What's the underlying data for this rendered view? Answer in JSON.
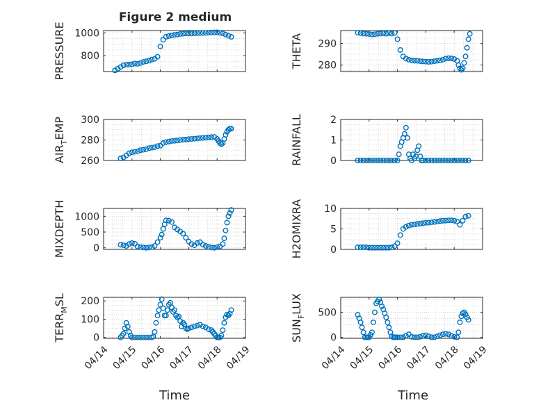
{
  "figure": {
    "title": "Figure 2 medium",
    "xlabel": "Time",
    "xtick_labels": [
      "04/14",
      "04/15",
      "04/16",
      "04/17",
      "04/18",
      "04/19"
    ],
    "marker_color": "#0072BD",
    "grid": "on (major and minor, dotted)"
  },
  "chart_data": [
    {
      "id": "pressure",
      "type": "scatter",
      "marker": "circle-open",
      "ylabel": "PRESSURE",
      "ylim": [
        660,
        1020
      ],
      "yticks": [
        800,
        1000
      ],
      "xlim_days": [
        0,
        5
      ],
      "x": [
        0.4,
        0.5,
        0.6,
        0.7,
        0.8,
        0.9,
        1.0,
        1.1,
        1.2,
        1.3,
        1.4,
        1.5,
        1.6,
        1.7,
        1.8,
        1.9,
        2.0,
        2.1,
        2.2,
        2.3,
        2.4,
        2.5,
        2.6,
        2.7,
        2.8,
        2.9,
        3.0,
        3.1,
        3.2,
        3.3,
        3.4,
        3.5,
        3.6,
        3.7,
        3.8,
        3.9,
        4.0,
        4.1,
        4.2,
        4.3,
        4.4,
        4.5
      ],
      "y": [
        670,
        685,
        700,
        715,
        720,
        722,
        725,
        730,
        728,
        735,
        745,
        750,
        755,
        765,
        772,
        790,
        880,
        940,
        965,
        972,
        978,
        982,
        985,
        990,
        992,
        995,
        995,
        994,
        996,
        997,
        998,
        999,
        1000,
        1002,
        1003,
        1004,
        1005,
        1000,
        995,
        985,
        975,
        965
      ]
    },
    {
      "id": "theta",
      "type": "scatter",
      "marker": "circle-open",
      "ylabel": "THETA",
      "ylim": [
        277,
        296
      ],
      "yticks": [
        280,
        290
      ],
      "xlim_days": [
        0,
        5
      ],
      "x": [
        0.6,
        0.7,
        0.8,
        0.9,
        1.0,
        1.1,
        1.2,
        1.3,
        1.4,
        1.5,
        1.6,
        1.7,
        1.8,
        1.9,
        2.0,
        2.1,
        2.2,
        2.3,
        2.4,
        2.5,
        2.6,
        2.7,
        2.8,
        2.9,
        3.0,
        3.1,
        3.2,
        3.3,
        3.4,
        3.5,
        3.6,
        3.7,
        3.8,
        3.9,
        4.0,
        4.1,
        4.15,
        4.2,
        4.25,
        4.3,
        4.35,
        4.4,
        4.45,
        4.5,
        4.55
      ],
      "y": [
        295,
        294.8,
        294.6,
        294.5,
        294.4,
        294.2,
        294.3,
        294.5,
        294.6,
        294.7,
        294.5,
        294.8,
        294.6,
        294.9,
        292,
        287,
        284,
        283,
        282.5,
        282.2,
        282,
        282,
        281.8,
        281.7,
        281.6,
        281.5,
        281.6,
        281.8,
        282,
        282.2,
        282.5,
        283,
        283.2,
        283.1,
        282.8,
        282,
        280,
        278.5,
        277.8,
        278.5,
        281,
        284,
        288,
        292,
        294.5
      ]
    },
    {
      "id": "air_temp",
      "type": "scatter",
      "marker": "circle-open",
      "ylabel_base": "AIR",
      "ylabel_sub": "T",
      "ylabel_rest": "EMP",
      "ylim": [
        260,
        300
      ],
      "yticks": [
        260,
        280,
        300
      ],
      "xlim_days": [
        0,
        5
      ],
      "x": [
        0.6,
        0.7,
        0.8,
        0.9,
        1.0,
        1.1,
        1.2,
        1.3,
        1.4,
        1.5,
        1.6,
        1.7,
        1.8,
        1.9,
        2.0,
        2.1,
        2.2,
        2.3,
        2.4,
        2.5,
        2.6,
        2.7,
        2.8,
        2.9,
        3.0,
        3.1,
        3.2,
        3.3,
        3.4,
        3.5,
        3.6,
        3.7,
        3.8,
        3.9,
        4.0,
        4.05,
        4.1,
        4.15,
        4.2,
        4.25,
        4.3,
        4.35,
        4.4,
        4.45,
        4.5
      ],
      "y": [
        262,
        263,
        265,
        267,
        268,
        268.5,
        269,
        270,
        270.5,
        271,
        272,
        272.5,
        273,
        274,
        274.5,
        277,
        278,
        278.5,
        279,
        279.2,
        279.5,
        280,
        280.2,
        280.5,
        280.8,
        281,
        281.2,
        281.5,
        281.8,
        282,
        282.2,
        282.5,
        282.8,
        283,
        281,
        279,
        277,
        276,
        277,
        281,
        285,
        288,
        290,
        291,
        291
      ]
    },
    {
      "id": "rainfall",
      "type": "scatter",
      "marker": "circle-open",
      "ylabel": "RAINFALL",
      "ylim": [
        0,
        2
      ],
      "yticks": [
        0,
        1,
        2
      ],
      "xlim_days": [
        0,
        5
      ],
      "x": [
        0.6,
        0.7,
        0.8,
        0.9,
        1.0,
        1.1,
        1.2,
        1.3,
        1.4,
        1.5,
        1.6,
        1.7,
        1.8,
        1.9,
        2.0,
        2.05,
        2.1,
        2.15,
        2.2,
        2.25,
        2.3,
        2.35,
        2.4,
        2.45,
        2.5,
        2.55,
        2.6,
        2.65,
        2.7,
        2.75,
        2.8,
        2.85,
        2.9,
        3.0,
        3.1,
        3.2,
        3.3,
        3.4,
        3.5,
        3.6,
        3.7,
        3.8,
        3.9,
        4.0,
        4.1,
        4.2,
        4.3,
        4.4,
        4.5
      ],
      "y": [
        0,
        0,
        0,
        0,
        0,
        0,
        0,
        0,
        0,
        0,
        0,
        0,
        0,
        0,
        0,
        0.3,
        0.7,
        0.9,
        1.1,
        1.3,
        1.6,
        1.1,
        0.3,
        0.1,
        0,
        0.3,
        0.1,
        0.2,
        0.5,
        0.7,
        0.2,
        0,
        0,
        0,
        0,
        0,
        0,
        0,
        0,
        0,
        0,
        0,
        0,
        0,
        0,
        0,
        0,
        0,
        0
      ]
    },
    {
      "id": "mixdepth",
      "type": "scatter",
      "marker": "circle-open",
      "ylabel": "MIXDEPTH",
      "ylim": [
        -50,
        1250
      ],
      "yticks": [
        0,
        500,
        1000
      ],
      "xlim_days": [
        0,
        5
      ],
      "x": [
        0.6,
        0.7,
        0.8,
        0.9,
        1.0,
        1.1,
        1.2,
        1.3,
        1.4,
        1.5,
        1.6,
        1.7,
        1.8,
        1.9,
        2.0,
        2.05,
        2.1,
        2.15,
        2.2,
        2.3,
        2.4,
        2.5,
        2.6,
        2.7,
        2.8,
        2.9,
        3.0,
        3.1,
        3.2,
        3.3,
        3.4,
        3.5,
        3.6,
        3.7,
        3.8,
        3.9,
        4.0,
        4.1,
        4.2,
        4.25,
        4.3,
        4.35,
        4.4,
        4.45,
        4.5
      ],
      "y": [
        100,
        80,
        60,
        120,
        150,
        130,
        40,
        20,
        10,
        0,
        10,
        20,
        60,
        180,
        320,
        420,
        600,
        750,
        870,
        860,
        820,
        650,
        580,
        520,
        450,
        320,
        200,
        120,
        80,
        150,
        180,
        100,
        60,
        30,
        10,
        0,
        20,
        40,
        120,
        300,
        550,
        800,
        1000,
        1100,
        1200
      ]
    },
    {
      "id": "h2omixra",
      "type": "scatter",
      "marker": "circle-open",
      "ylabel": "H2OMIXRA",
      "ylim": [
        0,
        10
      ],
      "yticks": [
        0,
        5,
        10
      ],
      "xlim_days": [
        0,
        5
      ],
      "x": [
        0.6,
        0.7,
        0.8,
        0.9,
        1.0,
        1.1,
        1.2,
        1.3,
        1.4,
        1.5,
        1.6,
        1.7,
        1.8,
        1.9,
        2.0,
        2.1,
        2.2,
        2.3,
        2.4,
        2.5,
        2.6,
        2.7,
        2.8,
        2.9,
        3.0,
        3.1,
        3.2,
        3.3,
        3.4,
        3.5,
        3.6,
        3.7,
        3.8,
        3.9,
        4.0,
        4.1,
        4.2,
        4.3,
        4.4,
        4.5
      ],
      "y": [
        0.5,
        0.5,
        0.5,
        0.5,
        0.4,
        0.4,
        0.4,
        0.4,
        0.4,
        0.4,
        0.4,
        0.4,
        0.5,
        0.8,
        1.5,
        3.5,
        5,
        5.5,
        5.8,
        6,
        6.1,
        6.2,
        6.3,
        6.4,
        6.5,
        6.5,
        6.6,
        6.7,
        6.8,
        6.9,
        7,
        7,
        7.1,
        7.1,
        7,
        6.8,
        6,
        7,
        8,
        8.2
      ]
    },
    {
      "id": "terr_msl",
      "type": "scatter",
      "marker": "circle-open",
      "ylabel_base": "TERR",
      "ylabel_sub": "M",
      "ylabel_rest": "SL",
      "ylim": [
        -5,
        220
      ],
      "yticks": [
        0,
        100,
        200
      ],
      "xlim_days": [
        0,
        5
      ],
      "x": [
        0.6,
        0.65,
        0.7,
        0.75,
        0.8,
        0.85,
        0.9,
        0.95,
        1.0,
        1.1,
        1.2,
        1.3,
        1.4,
        1.5,
        1.6,
        1.7,
        1.75,
        1.8,
        1.85,
        1.9,
        1.95,
        2.0,
        2.05,
        2.1,
        2.15,
        2.2,
        2.25,
        2.3,
        2.35,
        2.4,
        2.45,
        2.5,
        2.55,
        2.6,
        2.65,
        2.7,
        2.75,
        2.8,
        2.85,
        2.9,
        2.95,
        3.0,
        3.1,
        3.2,
        3.3,
        3.4,
        3.5,
        3.6,
        3.7,
        3.8,
        3.85,
        3.9,
        3.95,
        4.0,
        4.05,
        4.1,
        4.15,
        4.2,
        4.25,
        4.3,
        4.35,
        4.4,
        4.45,
        4.5
      ],
      "y": [
        0,
        10,
        20,
        50,
        80,
        60,
        30,
        10,
        0,
        0,
        0,
        0,
        0,
        0,
        0,
        0,
        5,
        30,
        80,
        120,
        150,
        180,
        210,
        160,
        120,
        120,
        150,
        180,
        190,
        165,
        140,
        150,
        120,
        110,
        115,
        90,
        60,
        80,
        70,
        50,
        45,
        50,
        55,
        60,
        65,
        70,
        60,
        55,
        45,
        40,
        30,
        20,
        10,
        0,
        0,
        0,
        10,
        40,
        80,
        110,
        125,
        120,
        130,
        150
      ]
    },
    {
      "id": "sun_flux",
      "type": "scatter",
      "marker": "circle-open",
      "ylabel_base": "SUN",
      "ylabel_sub": "F",
      "ylabel_rest": "LUX",
      "ylim": [
        -20,
        800
      ],
      "yticks": [
        0,
        500
      ],
      "xlim_days": [
        0,
        5
      ],
      "x": [
        0.6,
        0.65,
        0.7,
        0.75,
        0.8,
        0.85,
        0.9,
        0.95,
        1.0,
        1.05,
        1.1,
        1.15,
        1.2,
        1.25,
        1.3,
        1.35,
        1.4,
        1.45,
        1.5,
        1.55,
        1.6,
        1.65,
        1.7,
        1.75,
        1.8,
        1.85,
        1.9,
        1.95,
        2.0,
        2.1,
        2.2,
        2.3,
        2.4,
        2.5,
        2.6,
        2.7,
        2.8,
        2.9,
        3.0,
        3.1,
        3.2,
        3.3,
        3.4,
        3.5,
        3.6,
        3.7,
        3.8,
        3.9,
        4.0,
        4.1,
        4.15,
        4.2,
        4.25,
        4.3,
        4.35,
        4.4,
        4.45,
        4.5
      ],
      "y": [
        450,
        380,
        300,
        200,
        100,
        0,
        0,
        0,
        0,
        50,
        100,
        300,
        500,
        680,
        720,
        760,
        700,
        620,
        560,
        480,
        400,
        300,
        200,
        100,
        20,
        0,
        0,
        0,
        0,
        0,
        0,
        30,
        60,
        10,
        0,
        0,
        10,
        30,
        40,
        20,
        0,
        0,
        20,
        40,
        60,
        70,
        60,
        30,
        10,
        0,
        100,
        300,
        420,
        480,
        500,
        460,
        400,
        350
      ]
    }
  ]
}
